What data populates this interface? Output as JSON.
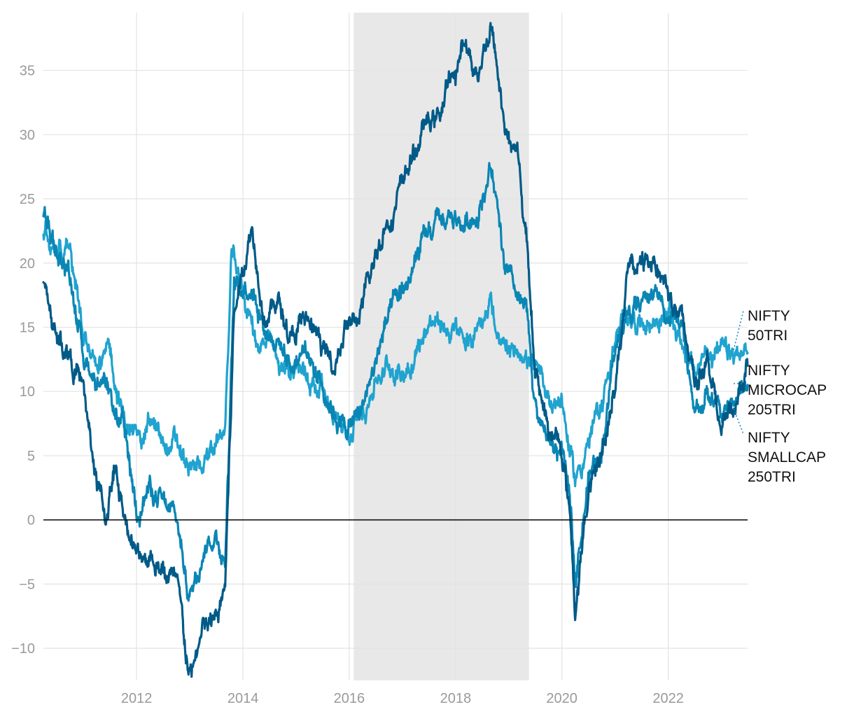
{
  "chart_data": {
    "type": "line",
    "title": "",
    "xlabel": "",
    "ylabel": "",
    "x_range": [
      "2010-04-01",
      "2023-06-30"
    ],
    "ylim": [
      -12.5,
      39.5
    ],
    "x_ticks": [
      {
        "date": "2012-01-01",
        "label": "2012"
      },
      {
        "date": "2014-01-01",
        "label": "2014"
      },
      {
        "date": "2016-01-01",
        "label": "2016"
      },
      {
        "date": "2018-01-01",
        "label": "2018"
      },
      {
        "date": "2020-01-01",
        "label": "2020"
      },
      {
        "date": "2022-01-01",
        "label": "2022"
      }
    ],
    "y_ticks": [
      {
        "value": -10,
        "label": "−10"
      },
      {
        "value": -5,
        "label": "−5"
      },
      {
        "value": 0,
        "label": "0"
      },
      {
        "value": 5,
        "label": "5"
      },
      {
        "value": 10,
        "label": "10"
      },
      {
        "value": 15,
        "label": "15"
      },
      {
        "value": 20,
        "label": "20"
      },
      {
        "value": 25,
        "label": "25"
      },
      {
        "value": 30,
        "label": "30"
      },
      {
        "value": 35,
        "label": "35"
      }
    ],
    "grid": true,
    "zero_line": true,
    "shaded_region": {
      "x_start": "2016-02-01",
      "x_end": "2019-05-20",
      "color": "#e8e8e8"
    },
    "series": [
      {
        "name": "NIFTY 50TRI",
        "label_lines": [
          "NIFTY",
          "50TRI"
        ],
        "color": "#20a3cf",
        "points": [
          [
            "2010-04-01",
            22.5
          ],
          [
            "2010-07-01",
            21.0
          ],
          [
            "2010-10-01",
            22.0
          ],
          [
            "2011-01-01",
            14.0
          ],
          [
            "2011-04-01",
            12.5
          ],
          [
            "2011-07-01",
            13.0
          ],
          [
            "2011-10-01",
            8.0
          ],
          [
            "2012-01-01",
            6.0
          ],
          [
            "2012-04-01",
            8.0
          ],
          [
            "2012-07-01",
            5.5
          ],
          [
            "2012-10-01",
            6.0
          ],
          [
            "2013-01-01",
            3.5
          ],
          [
            "2013-04-01",
            4.5
          ],
          [
            "2013-07-01",
            6.0
          ],
          [
            "2013-09-01",
            7.0
          ],
          [
            "2013-10-15",
            20.5
          ],
          [
            "2014-01-01",
            18.0
          ],
          [
            "2014-04-01",
            14.0
          ],
          [
            "2014-07-01",
            13.5
          ],
          [
            "2014-10-01",
            11.5
          ],
          [
            "2015-01-01",
            12.0
          ],
          [
            "2015-04-01",
            11.0
          ],
          [
            "2015-07-01",
            10.5
          ],
          [
            "2015-10-01",
            8.0
          ],
          [
            "2016-01-01",
            6.0
          ],
          [
            "2016-04-01",
            8.5
          ],
          [
            "2016-07-01",
            11.0
          ],
          [
            "2016-10-01",
            12.0
          ],
          [
            "2017-01-01",
            11.5
          ],
          [
            "2017-04-01",
            13.0
          ],
          [
            "2017-07-01",
            15.5
          ],
          [
            "2017-10-01",
            15.0
          ],
          [
            "2018-01-01",
            14.5
          ],
          [
            "2018-04-01",
            13.5
          ],
          [
            "2018-07-01",
            16.0
          ],
          [
            "2018-09-01",
            17.5
          ],
          [
            "2018-10-15",
            13.5
          ],
          [
            "2019-01-01",
            12.5
          ],
          [
            "2019-04-01",
            13.5
          ],
          [
            "2019-07-01",
            11.5
          ],
          [
            "2019-10-01",
            9.5
          ],
          [
            "2020-01-01",
            9.5
          ],
          [
            "2020-03-01",
            5.0
          ],
          [
            "2020-04-01",
            3.0
          ],
          [
            "2020-07-01",
            6.0
          ],
          [
            "2020-10-01",
            9.0
          ],
          [
            "2021-01-01",
            14.0
          ],
          [
            "2021-04-01",
            16.0
          ],
          [
            "2021-07-01",
            15.5
          ],
          [
            "2021-10-01",
            15.5
          ],
          [
            "2022-01-01",
            16.0
          ],
          [
            "2022-04-01",
            14.0
          ],
          [
            "2022-07-01",
            11.0
          ],
          [
            "2022-10-01",
            13.5
          ],
          [
            "2023-01-01",
            13.0
          ],
          [
            "2023-04-01",
            12.5
          ],
          [
            "2023-06-30",
            13.0
          ]
        ]
      },
      {
        "name": "NIFTY MICROCAP 205TRI",
        "label_lines": [
          "NIFTY",
          "MICROCAP",
          "205TRI"
        ],
        "color": "#005a87",
        "points": [
          [
            "2010-04-01",
            18.5
          ],
          [
            "2010-07-01",
            14.0
          ],
          [
            "2010-10-01",
            13.0
          ],
          [
            "2011-01-01",
            10.0
          ],
          [
            "2011-04-01",
            3.0
          ],
          [
            "2011-06-01",
            0.0
          ],
          [
            "2011-08-01",
            4.0
          ],
          [
            "2011-10-01",
            1.0
          ],
          [
            "2012-01-01",
            -3.0
          ],
          [
            "2012-04-01",
            -2.5
          ],
          [
            "2012-07-01",
            -4.0
          ],
          [
            "2012-10-01",
            -5.0
          ],
          [
            "2013-01-01",
            -12.5
          ],
          [
            "2013-04-01",
            -8.5
          ],
          [
            "2013-07-01",
            -8.0
          ],
          [
            "2013-09-01",
            -5.0
          ],
          [
            "2013-11-01",
            16.0
          ],
          [
            "2014-03-01",
            23.0
          ],
          [
            "2014-06-01",
            16.0
          ],
          [
            "2014-09-01",
            17.0
          ],
          [
            "2014-12-01",
            14.0
          ],
          [
            "2015-03-01",
            15.5
          ],
          [
            "2015-06-01",
            14.0
          ],
          [
            "2015-09-01",
            12.0
          ],
          [
            "2015-12-01",
            15.0
          ],
          [
            "2016-03-01",
            15.5
          ],
          [
            "2016-06-01",
            19.0
          ],
          [
            "2016-09-01",
            23.0
          ],
          [
            "2016-12-01",
            25.0
          ],
          [
            "2017-03-01",
            28.0
          ],
          [
            "2017-06-01",
            30.5
          ],
          [
            "2017-09-01",
            31.5
          ],
          [
            "2017-12-01",
            34.0
          ],
          [
            "2018-03-01",
            37.0
          ],
          [
            "2018-06-01",
            35.0
          ],
          [
            "2018-09-01",
            38.5
          ],
          [
            "2018-12-01",
            31.0
          ],
          [
            "2019-03-01",
            28.0
          ],
          [
            "2019-05-01",
            22.0
          ],
          [
            "2019-07-01",
            12.0
          ],
          [
            "2019-10-01",
            7.0
          ],
          [
            "2020-01-01",
            5.5
          ],
          [
            "2020-03-01",
            0.0
          ],
          [
            "2020-04-01",
            -7.0
          ],
          [
            "2020-07-01",
            2.0
          ],
          [
            "2020-10-01",
            5.0
          ],
          [
            "2021-01-01",
            11.0
          ],
          [
            "2021-04-01",
            19.0
          ],
          [
            "2021-07-01",
            20.0
          ],
          [
            "2021-10-01",
            20.5
          ],
          [
            "2022-01-01",
            18.0
          ],
          [
            "2022-04-01",
            15.5
          ],
          [
            "2022-07-01",
            11.0
          ],
          [
            "2022-10-01",
            13.0
          ],
          [
            "2023-01-01",
            7.0
          ],
          [
            "2023-04-01",
            8.5
          ],
          [
            "2023-06-30",
            12.0
          ]
        ]
      },
      {
        "name": "NIFTY SMALLCAP 250TRI",
        "label_lines": [
          "NIFTY",
          "SMALLCAP",
          "250TRI"
        ],
        "color": "#0a86b4",
        "points": [
          [
            "2010-04-01",
            24.0
          ],
          [
            "2010-07-01",
            21.0
          ],
          [
            "2010-10-01",
            19.0
          ],
          [
            "2011-01-01",
            13.0
          ],
          [
            "2011-04-01",
            11.0
          ],
          [
            "2011-07-01",
            9.0
          ],
          [
            "2011-10-01",
            7.0
          ],
          [
            "2012-01-01",
            1.0
          ],
          [
            "2012-04-01",
            2.5
          ],
          [
            "2012-07-01",
            1.0
          ],
          [
            "2012-10-01",
            0.0
          ],
          [
            "2013-01-01",
            -6.0
          ],
          [
            "2013-04-01",
            -2.0
          ],
          [
            "2013-07-01",
            -1.0
          ],
          [
            "2013-09-01",
            -3.0
          ],
          [
            "2013-11-01",
            18.0
          ],
          [
            "2014-03-01",
            18.5
          ],
          [
            "2014-06-01",
            15.0
          ],
          [
            "2014-09-01",
            14.0
          ],
          [
            "2014-12-01",
            12.0
          ],
          [
            "2015-03-01",
            13.5
          ],
          [
            "2015-06-01",
            11.5
          ],
          [
            "2015-09-01",
            9.0
          ],
          [
            "2015-12-01",
            7.0
          ],
          [
            "2016-03-01",
            8.0
          ],
          [
            "2016-06-01",
            11.0
          ],
          [
            "2016-09-01",
            15.0
          ],
          [
            "2016-12-01",
            17.0
          ],
          [
            "2017-03-01",
            19.0
          ],
          [
            "2017-06-01",
            21.5
          ],
          [
            "2017-09-01",
            23.0
          ],
          [
            "2017-12-01",
            23.5
          ],
          [
            "2018-03-01",
            23.0
          ],
          [
            "2018-06-01",
            24.0
          ],
          [
            "2018-09-01",
            27.5
          ],
          [
            "2018-12-01",
            19.5
          ],
          [
            "2019-03-01",
            17.0
          ],
          [
            "2019-05-01",
            16.0
          ],
          [
            "2019-07-01",
            9.0
          ],
          [
            "2019-10-01",
            6.0
          ],
          [
            "2020-01-01",
            5.0
          ],
          [
            "2020-03-01",
            1.0
          ],
          [
            "2020-04-01",
            -4.0
          ],
          [
            "2020-07-01",
            3.0
          ],
          [
            "2020-10-01",
            6.0
          ],
          [
            "2021-01-01",
            13.0
          ],
          [
            "2021-04-01",
            16.0
          ],
          [
            "2021-07-01",
            17.0
          ],
          [
            "2021-10-01",
            18.0
          ],
          [
            "2022-01-01",
            16.0
          ],
          [
            "2022-04-01",
            15.0
          ],
          [
            "2022-07-01",
            8.0
          ],
          [
            "2022-10-01",
            10.0
          ],
          [
            "2023-01-01",
            8.0
          ],
          [
            "2023-04-01",
            9.5
          ],
          [
            "2023-06-30",
            10.5
          ]
        ]
      }
    ]
  }
}
